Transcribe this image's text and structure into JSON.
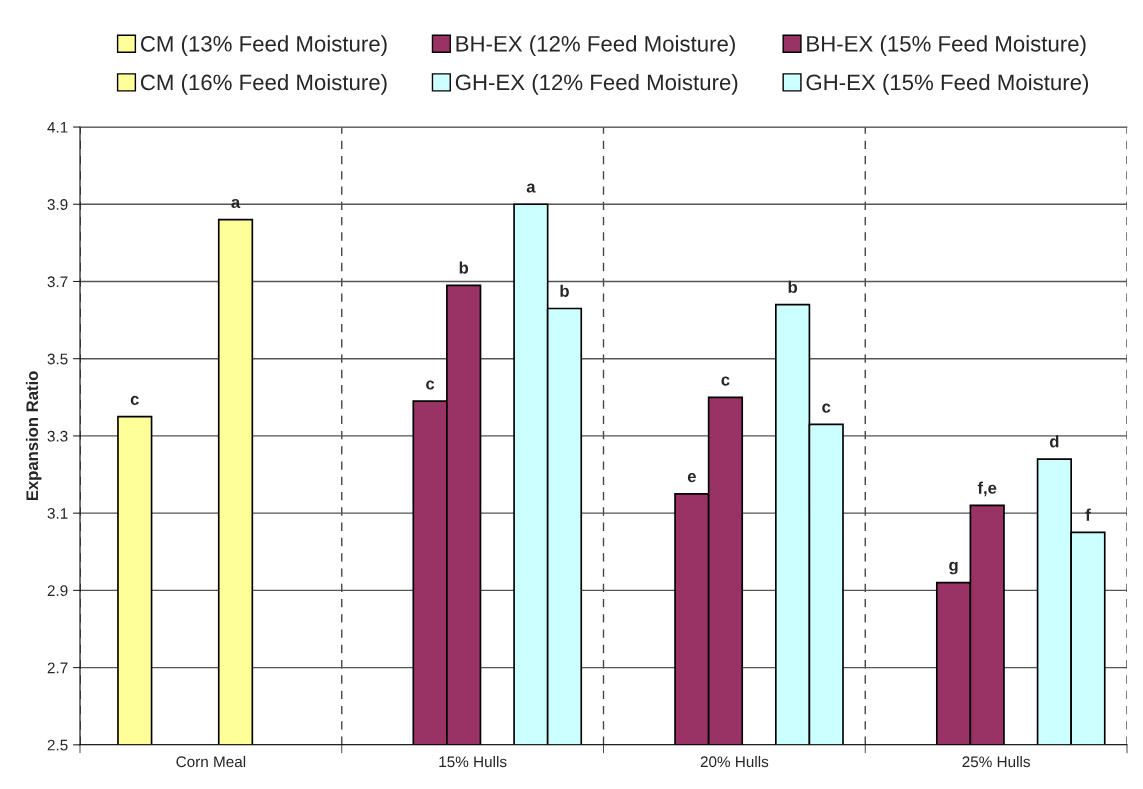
{
  "chart_data": {
    "type": "bar",
    "ylabel": "Expansion Ratio",
    "categories": [
      "Corn Meal",
      "15% Hulls",
      "20% Hulls",
      "25% Hulls"
    ],
    "series": [
      {
        "name": "CM (13% Feed Moisture)",
        "color": "#ffff99",
        "values": [
          3.35,
          null,
          null,
          null
        ],
        "value_labels": [
          "c",
          null,
          null,
          null
        ]
      },
      {
        "name": "BH-EX (12% Feed Moisture)",
        "color": "#993366",
        "values": [
          null,
          3.39,
          3.15,
          2.92
        ],
        "value_labels": [
          null,
          "c",
          "e",
          "g"
        ]
      },
      {
        "name": "BH-EX (15% Feed Moisture)",
        "color": "#993366",
        "values": [
          null,
          3.69,
          3.4,
          3.12
        ],
        "value_labels": [
          null,
          "b",
          "c",
          "f,e"
        ]
      },
      {
        "name": "CM (16% Feed Moisture)",
        "color": "#ffff99",
        "values": [
          3.86,
          null,
          null,
          null
        ],
        "value_labels": [
          "a",
          null,
          null,
          null
        ]
      },
      {
        "name": "GH-EX (12% Feed Moisture)",
        "color": "#ccffff",
        "values": [
          null,
          3.9,
          3.64,
          3.24
        ],
        "value_labels": [
          null,
          "a",
          "b",
          "d"
        ]
      },
      {
        "name": "GH-EX (15% Feed Moisture)",
        "color": "#ccffff",
        "values": [
          null,
          3.63,
          3.33,
          3.05
        ],
        "value_labels": [
          null,
          "b",
          "c",
          "f"
        ]
      }
    ],
    "ylim": [
      2.5,
      4.1
    ],
    "yticks": [
      2.5,
      2.7,
      2.9,
      3.1,
      3.3,
      3.5,
      3.7,
      3.9,
      4.1
    ],
    "grid": true,
    "legend": "top"
  }
}
